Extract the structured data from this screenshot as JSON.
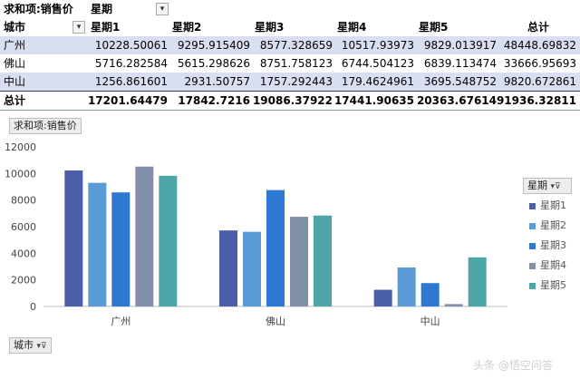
{
  "pivot": {
    "value_field_label": "求和项:销售价",
    "column_field_label": "星期",
    "row_field_label": "城市",
    "headers": [
      "星期1",
      "星期2",
      "星期3",
      "星期4",
      "星期5",
      "总计"
    ],
    "rows": [
      {
        "city": "广州",
        "values": [
          "10228.50061",
          "9295.915409",
          "8577.328659",
          "10517.93973",
          "9829.013917",
          "48448.69832"
        ]
      },
      {
        "city": "佛山",
        "values": [
          "5716.282584",
          "5615.298626",
          "8751.758123",
          "6744.504123",
          "6839.113474",
          "33666.95693"
        ]
      },
      {
        "city": "中山",
        "values": [
          "1256.861601",
          "2931.50757",
          "1757.292443",
          "179.4624961",
          "3695.548752",
          "9820.672861"
        ]
      }
    ],
    "total": {
      "label": "总计",
      "values": [
        "17201.64479",
        "17842.7216",
        "19086.37922",
        "17441.90635",
        "20363.67614",
        "91936.32811"
      ]
    }
  },
  "chart_data": {
    "type": "bar",
    "title": "",
    "value_field_tag": "求和项:销售价",
    "legend_title": "星期",
    "axis_field_tag": "城市",
    "categories": [
      "广州",
      "佛山",
      "中山"
    ],
    "series": [
      {
        "name": "星期1",
        "color": "#4a5fa8",
        "values": [
          10228.50061,
          5716.282584,
          1256.861601
        ]
      },
      {
        "name": "星期2",
        "color": "#5b9bd5",
        "values": [
          9295.915409,
          5615.298626,
          2931.50757
        ]
      },
      {
        "name": "星期3",
        "color": "#2e78d2",
        "values": [
          8577.328659,
          8751.758123,
          1757.292443
        ]
      },
      {
        "name": "星期4",
        "color": "#8190a8",
        "values": [
          10517.93973,
          6744.504123,
          179.4624961
        ]
      },
      {
        "name": "星期5",
        "color": "#4ea6a8",
        "values": [
          9829.013917,
          6839.113474,
          3695.548752
        ]
      }
    ],
    "ylim": [
      0,
      12000
    ],
    "yticks": [
      0,
      2000,
      4000,
      6000,
      8000,
      10000,
      12000
    ],
    "grid": false,
    "legend_position": "right"
  },
  "watermark": "头条 @悟空问答"
}
